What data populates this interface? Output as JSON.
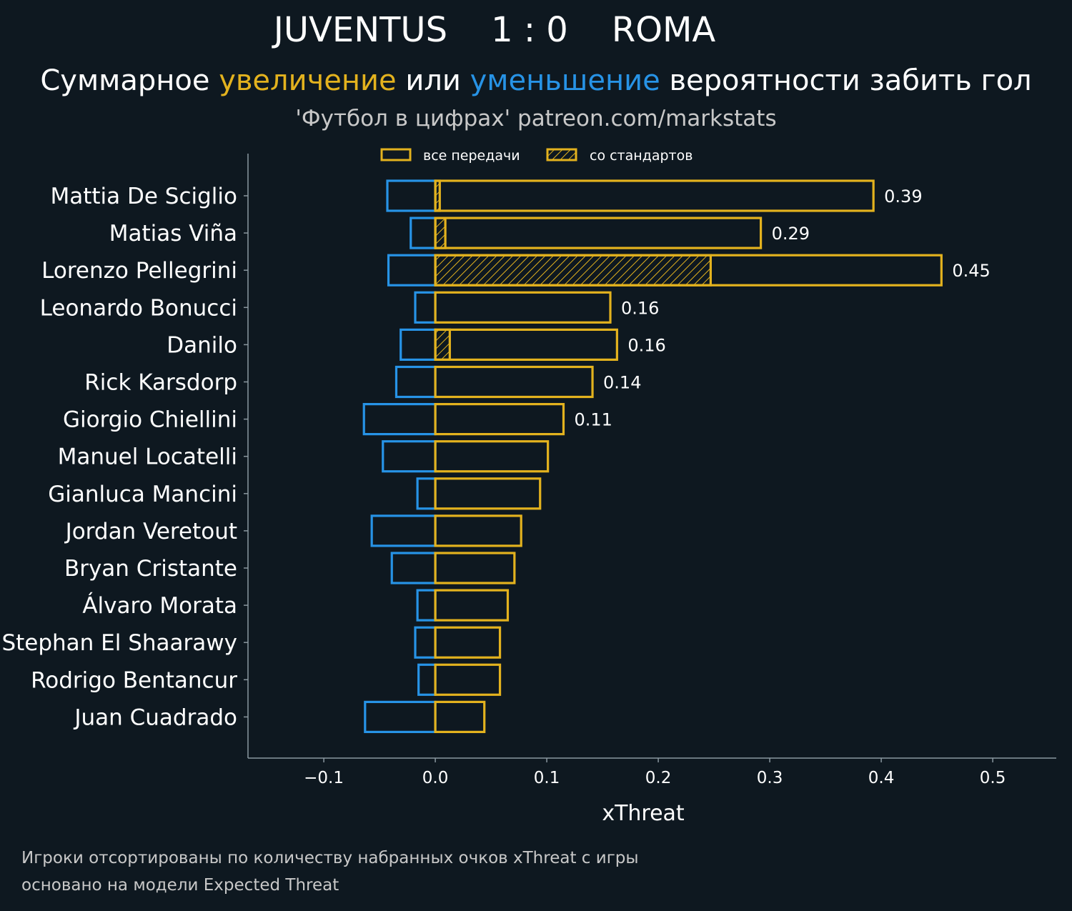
{
  "header": {
    "title": "JUVENTUS    1 : 0    ROMA",
    "subtitle_part1": "Суммарное ",
    "subtitle_increase": "увеличение",
    "subtitle_part2": " или ",
    "subtitle_decrease": "уменьшение",
    "subtitle_part3": " вероятности забить гол",
    "source": "'Футбол в цифрах' patreon.com/markstats"
  },
  "footer": {
    "line1": "Игроки отсортированы по количеству набранных очков xThreat с игры",
    "line2": "основано на модели Expected Threat"
  },
  "colors": {
    "background": "#0e1820",
    "increase": "#e3b21e",
    "decrease": "#2793e6",
    "axis": "#8a979f",
    "text": "#ffffff"
  },
  "chart_data": {
    "type": "bar",
    "orientation": "horizontal",
    "xlabel": "xThreat",
    "xlim": [
      -0.168,
      0.557
    ],
    "xticks": [
      -0.1,
      0.0,
      0.1,
      0.2,
      0.3,
      0.4,
      0.5
    ],
    "xtick_labels": [
      "−0.1",
      "0.0",
      "0.1",
      "0.2",
      "0.3",
      "0.4",
      "0.5"
    ],
    "legend": {
      "position": "top-center",
      "all_passes": "все передачи",
      "set_pieces": "со стандартов"
    },
    "categories": [
      "Mattia De Sciglio",
      "Matias Viña",
      "Lorenzo Pellegrini",
      "Leonardo Bonucci",
      "Danilo",
      "Rick Karsdorp",
      "Giorgio Chiellini",
      "Manuel Locatelli",
      "Gianluca Mancini",
      "Jordan Veretout",
      "Bryan Cristante",
      "Álvaro Morata",
      "Stephan El Shaarawy",
      "Rodrigo Bentancur",
      "Juan Cuadrado"
    ],
    "series": [
      {
        "name": "все передачи (увеличение)",
        "values": [
          0.393,
          0.292,
          0.454,
          0.157,
          0.163,
          0.141,
          0.115,
          0.101,
          0.094,
          0.077,
          0.071,
          0.065,
          0.058,
          0.058,
          0.044
        ]
      },
      {
        "name": "со стандартов",
        "values": [
          0.004,
          0.009,
          0.247,
          0.0,
          0.013,
          0.0,
          0.0,
          0.0,
          0.0,
          0.0,
          0.0,
          0.0,
          0.0,
          0.0,
          0.0
        ]
      },
      {
        "name": "уменьшение",
        "values": [
          -0.043,
          -0.022,
          -0.042,
          -0.018,
          -0.031,
          -0.035,
          -0.064,
          -0.047,
          -0.016,
          -0.057,
          -0.039,
          -0.016,
          -0.018,
          -0.015,
          -0.063
        ]
      }
    ],
    "value_labels": [
      "0.39",
      "0.29",
      "0.45",
      "0.16",
      "0.16",
      "0.14",
      "0.11",
      "",
      "",
      "",
      "",
      "",
      "",
      "",
      ""
    ]
  }
}
